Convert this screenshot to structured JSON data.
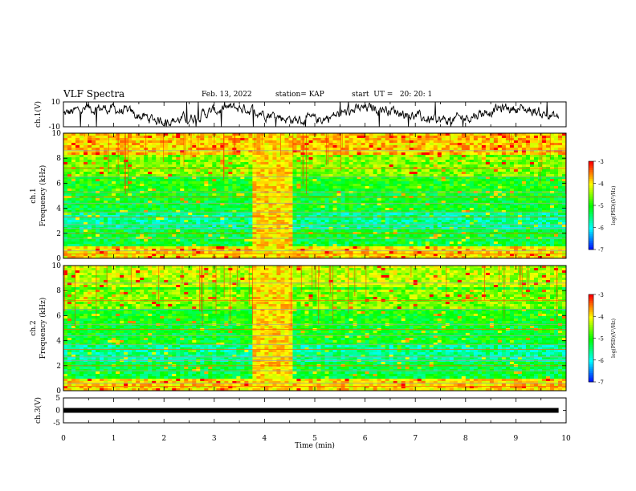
{
  "header": {
    "title": "VLF Spectra",
    "date": "Feb. 13, 2022",
    "station": "station= KAP",
    "start": "start  UT =   20: 20: 1"
  },
  "chart_data": [
    {
      "type": "line",
      "ylabel": "ch.1(V)",
      "ylim": [
        -10,
        10
      ],
      "ytick_labels": [
        "10",
        "-10"
      ],
      "trace_color": "#000000",
      "x_range_min": [
        0,
        9.85
      ]
    },
    {
      "type": "heatmap",
      "ylabel_channel": "ch.1",
      "ylabel": "Frequency (kHz)",
      "ylim": [
        0,
        10
      ],
      "ytick_labels": [
        "0",
        "2",
        "4",
        "6",
        "8",
        "10"
      ],
      "burst_min": [
        3.8,
        4.5
      ],
      "colorbar": {
        "label": "log(PSD)(V²/Hz)",
        "range": [
          -7,
          -3
        ],
        "tick_labels": [
          "-3",
          "-4",
          "-5",
          "-6",
          "-7"
        ]
      }
    },
    {
      "type": "heatmap",
      "ylabel_channel": "ch.2",
      "ylabel": "Frequency (kHz)",
      "ylim": [
        0,
        10
      ],
      "ytick_labels": [
        "0",
        "2",
        "4",
        "6",
        "8",
        "10"
      ],
      "burst_min": [
        3.8,
        4.5
      ],
      "colorbar": {
        "label": "log(PSD)(V²/Hz)",
        "range": [
          -7,
          -3
        ],
        "tick_labels": [
          "-3",
          "-4",
          "-5",
          "-6",
          "-7"
        ]
      }
    },
    {
      "type": "line",
      "ylabel": "ch.3(V)",
      "ylim": [
        -5,
        5
      ],
      "ytick_labels": [
        "5",
        "0",
        "-5"
      ],
      "trace_color": "#000000",
      "x_range_min": [
        0,
        9.85
      ]
    }
  ],
  "xaxis": {
    "label": "Time (min)",
    "range": [
      0,
      10
    ],
    "tick_labels": [
      "0",
      "1",
      "2",
      "3",
      "4",
      "5",
      "6",
      "7",
      "8",
      "9",
      "10"
    ]
  }
}
